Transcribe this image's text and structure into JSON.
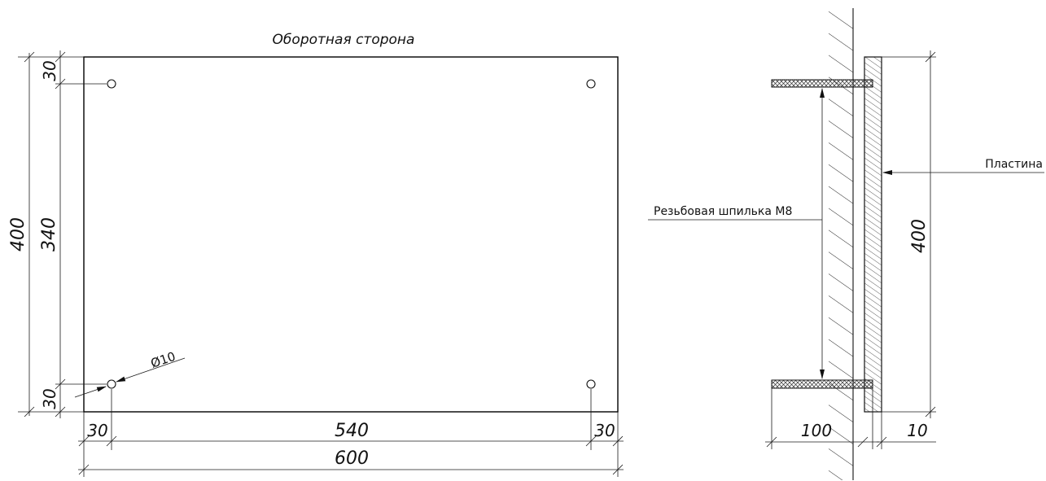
{
  "front_view": {
    "title": "Оборотная сторона",
    "dim_width_total": "600",
    "dim_width_inner": "540",
    "dim_left_offset": "30",
    "dim_right_offset": "30",
    "dim_height_total": "400",
    "dim_height_inner": "340",
    "dim_top_offset": "30",
    "dim_bottom_offset": "30",
    "hole_diameter": "Ø10"
  },
  "side_view": {
    "plate_label": "Пластина",
    "stud_label": "Резьбовая шпилька М8",
    "dim_height": "400",
    "dim_stud_length": "100",
    "dim_plate_thickness": "10"
  }
}
